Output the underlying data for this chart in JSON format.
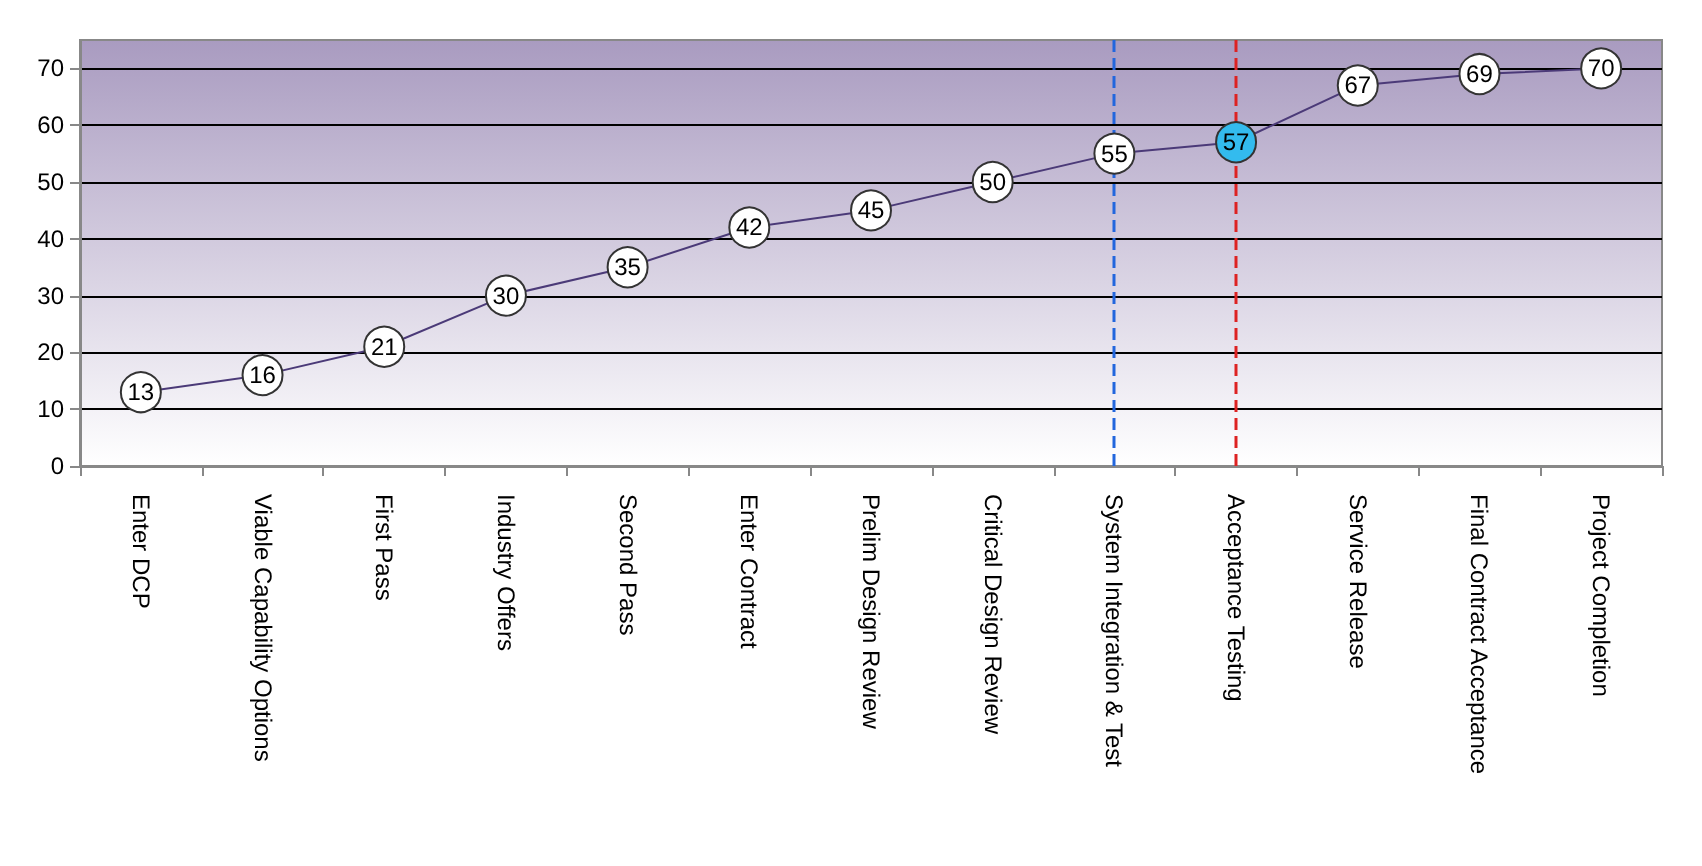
{
  "chart_data": {
    "type": "line",
    "categories": [
      "Enter DCP",
      "Viable Capability Options",
      "First Pass",
      "Industry Offers",
      "Second Pass",
      "Enter Contract",
      "Prelim Design Review",
      "Critical Design Review",
      "System Integration & Test",
      "Acceptance Testing",
      "Service Release",
      "Final Contract Acceptance",
      "Project Completion"
    ],
    "series": [
      {
        "color": "#4b3a78",
        "colors": [
          "#ffffff",
          "#ffffff",
          "#ffffff",
          "#ffffff",
          "#ffffff",
          "#ffffff",
          "#ffffff",
          "#ffffff",
          "#ffffff",
          "#33bbee",
          "#ffffff",
          "#ffffff",
          "#ffffff"
        ],
        "values": [
          13,
          16,
          21,
          30,
          35,
          42,
          45,
          50,
          55,
          57,
          67,
          69,
          70
        ]
      }
    ],
    "ylim": [
      0,
      75
    ],
    "yticks": [
      0,
      10,
      20,
      30,
      40,
      50,
      60,
      70
    ],
    "ref_lines": [
      {
        "axis": "x",
        "value": "System Integration & Test",
        "color": "#2266dd",
        "line_style": "dashed"
      },
      {
        "axis": "x",
        "value": "Acceptance Testing",
        "color": "#dd2222",
        "line_style": "dashed"
      }
    ],
    "grid": "y",
    "marker": "circle",
    "line_style": "solid",
    "data_labels": true
  }
}
